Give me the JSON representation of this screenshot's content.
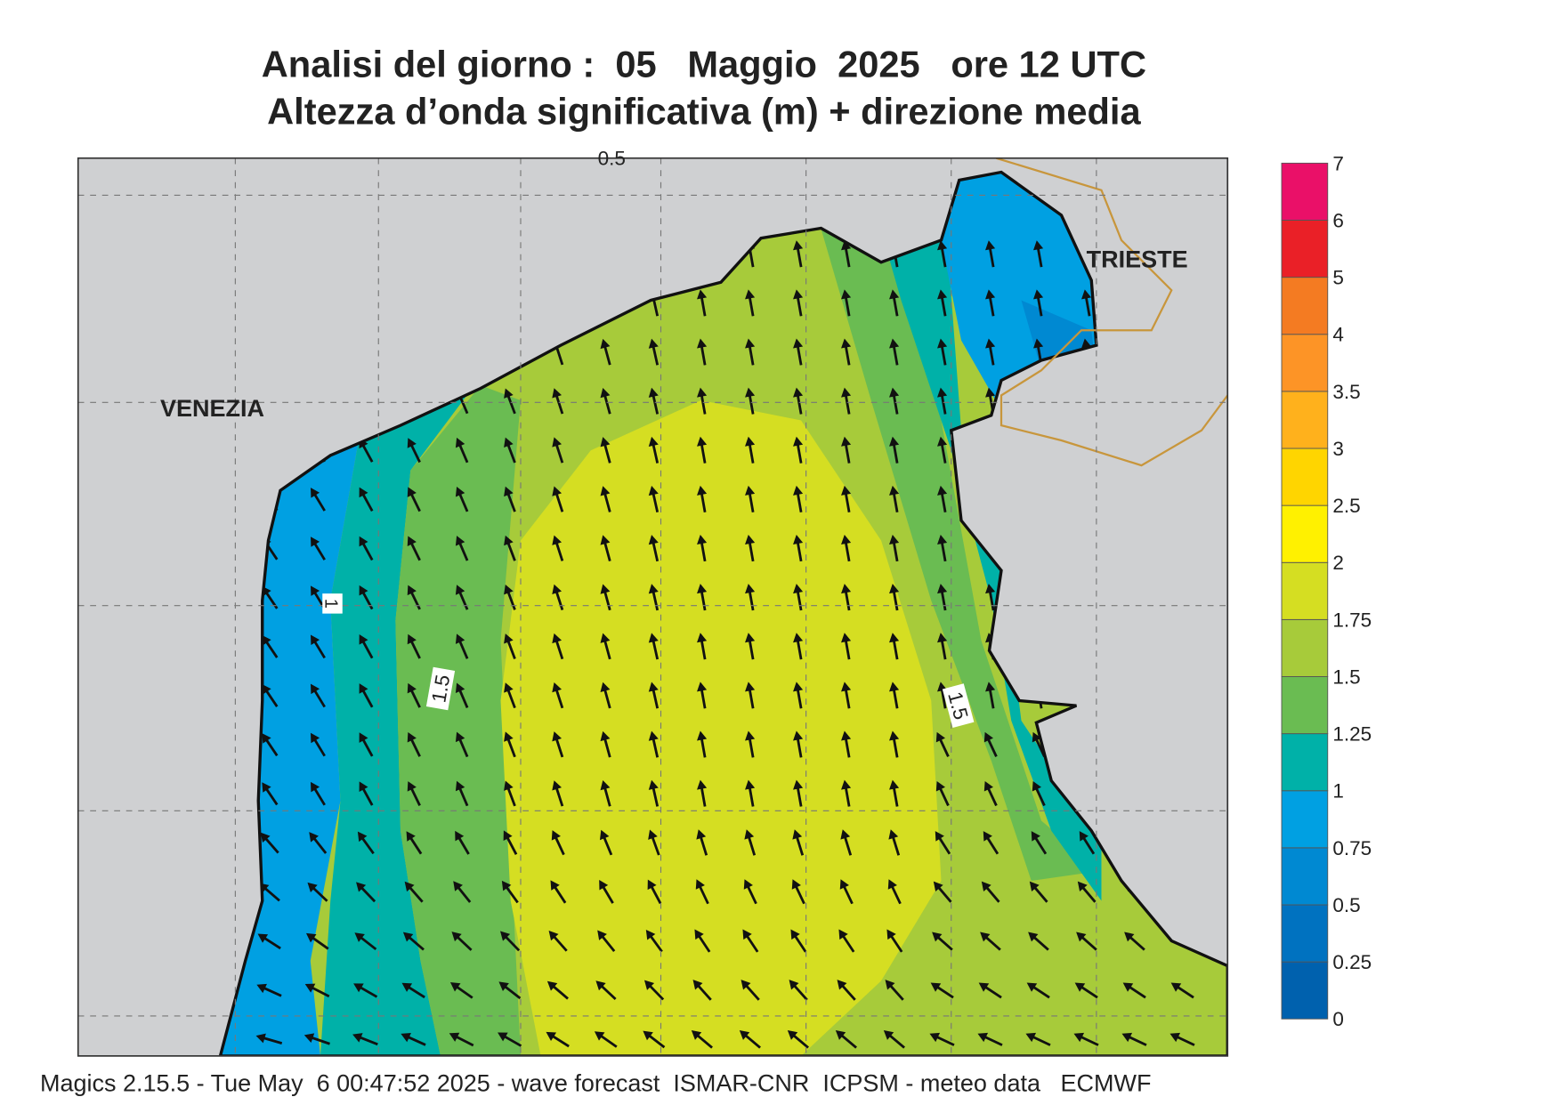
{
  "header": {
    "title": "Analisi del giorno :  05   Maggio  2025   ore 12 UTC",
    "subtitle": "Altezza d’onda significativa (m) + direzione media"
  },
  "map": {
    "places": [
      "VENEZIA",
      "TRIESTE"
    ],
    "contour_labels": [
      "0.5",
      "1",
      "1.5",
      "1.5"
    ]
  },
  "colorbar": {
    "labels": [
      "0",
      "0.25",
      "0.5",
      "0.75",
      "1",
      "1.25",
      "1.5",
      "1.75",
      "2",
      "2.5",
      "3",
      "3.5",
      "4",
      "5",
      "6",
      "7"
    ],
    "colors": [
      "#0061ae",
      "#0072c0",
      "#0089d2",
      "#00a0e2",
      "#00b1a8",
      "#6abc52",
      "#a7cb3a",
      "#d5de22",
      "#fff100",
      "#ffd500",
      "#ffb11c",
      "#fd9426",
      "#f47b22",
      "#ea2027",
      "#ea1068"
    ]
  },
  "footer": "Magics 2.15.5 - Tue May  6 00:47:52 2025 - wave forecast  ISMAR-CNR  ICPSM - meteo data   ECMWF"
}
